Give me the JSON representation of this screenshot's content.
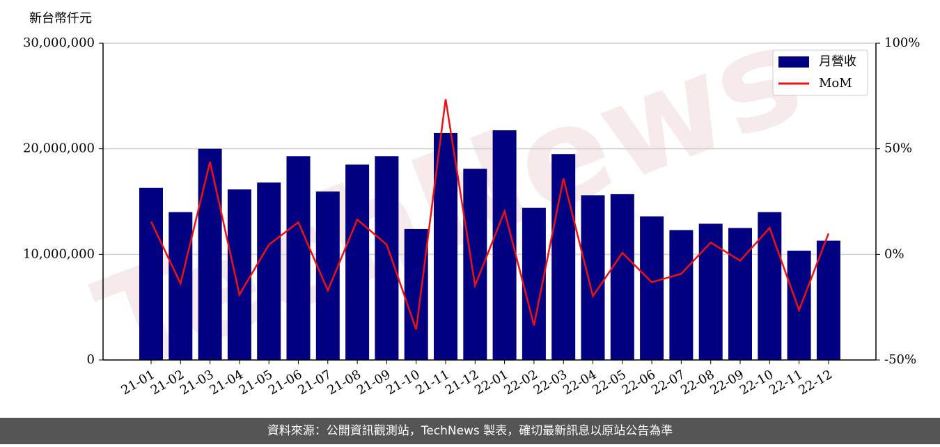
{
  "chart_data": {
    "type": "bar",
    "y_label": "新台幣仟元",
    "watermark": "TechNews",
    "footer": "資料來源：公開資訊觀測站，TechNews 製表，確切最新訊息以原站公告為準",
    "categories": [
      "21-01",
      "21-02",
      "21-03",
      "21-04",
      "21-05",
      "21-06",
      "21-07",
      "21-08",
      "21-09",
      "21-10",
      "21-11",
      "21-12",
      "22-01",
      "22-02",
      "22-03",
      "22-04",
      "22-05",
      "22-06",
      "22-07",
      "22-08",
      "22-09",
      "22-10",
      "22-11",
      "22-12"
    ],
    "series": [
      {
        "name": "月營收",
        "type": "bar",
        "color": "#000080",
        "values": [
          16300000,
          14000000,
          20000000,
          16150000,
          16800000,
          19300000,
          15950000,
          18500000,
          19300000,
          12400000,
          21500000,
          18100000,
          21750000,
          14400000,
          19500000,
          15600000,
          15700000,
          13600000,
          12300000,
          12900000,
          12500000,
          14000000,
          10350000,
          11300000
        ]
      },
      {
        "name": "MoM",
        "type": "line",
        "axis": "y2",
        "color": "#ee1111",
        "values": [
          15.5,
          -13.8,
          43.8,
          -19.1,
          4.6,
          15.2,
          -17.1,
          16.5,
          4.6,
          -35.6,
          73.5,
          -14.8,
          20.4,
          -33.6,
          35.9,
          -19.8,
          0.7,
          -13.2,
          -9.2,
          5.6,
          -3.0,
          12.5,
          -26.4,
          9.9
        ]
      }
    ],
    "ylim": [
      0,
      30000000
    ],
    "yticks": [
      0,
      {
        "value": 10000000,
        "label": "10,000,000"
      },
      {
        "value": 20000000,
        "label": "20,000,000"
      },
      {
        "value": 30000000,
        "label": "30,000,000"
      }
    ],
    "y2lim": [
      -50,
      100
    ],
    "y2ticks": [
      {
        "value": -50,
        "label": "-50%"
      },
      {
        "value": 0,
        "label": "0%"
      },
      {
        "value": 50,
        "label": "50%"
      },
      {
        "value": 100,
        "label": "100%"
      }
    ],
    "grid": true,
    "legend": "upper right"
  }
}
